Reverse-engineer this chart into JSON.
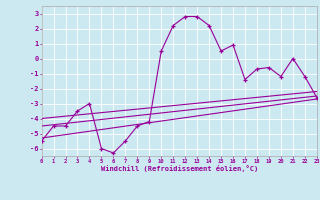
{
  "x": [
    0,
    1,
    2,
    3,
    4,
    5,
    6,
    7,
    8,
    9,
    10,
    11,
    12,
    13,
    14,
    15,
    16,
    17,
    18,
    19,
    20,
    21,
    22,
    23
  ],
  "y_main": [
    -5.5,
    -4.5,
    -4.5,
    -3.5,
    -3.0,
    -6.0,
    -6.3,
    -5.5,
    -4.5,
    -4.2,
    0.5,
    2.2,
    2.8,
    2.8,
    2.2,
    0.5,
    0.9,
    -1.4,
    -0.7,
    -0.6,
    -1.2,
    0.0,
    -1.2,
    -2.6
  ],
  "trend1_x": [
    0,
    23
  ],
  "trend1_y": [
    -5.3,
    -2.7
  ],
  "trend2_x": [
    0,
    23
  ],
  "trend2_y": [
    -4.5,
    -2.5
  ],
  "trend3_x": [
    0,
    23
  ],
  "trend3_y": [
    -4.0,
    -2.2
  ],
  "line_color": "#990099",
  "bg_color": "#cce8f0",
  "grid_color": "#ffffff",
  "xlabel": "Windchill (Refroidissement éolien,°C)",
  "xlim": [
    0,
    23
  ],
  "ylim": [
    -6.5,
    3.5
  ],
  "yticks": [
    3,
    2,
    1,
    0,
    -1,
    -2,
    -3,
    -4,
    -5,
    -6
  ],
  "xticks": [
    0,
    1,
    2,
    3,
    4,
    5,
    6,
    7,
    8,
    9,
    10,
    11,
    12,
    13,
    14,
    15,
    16,
    17,
    18,
    19,
    20,
    21,
    22,
    23
  ]
}
